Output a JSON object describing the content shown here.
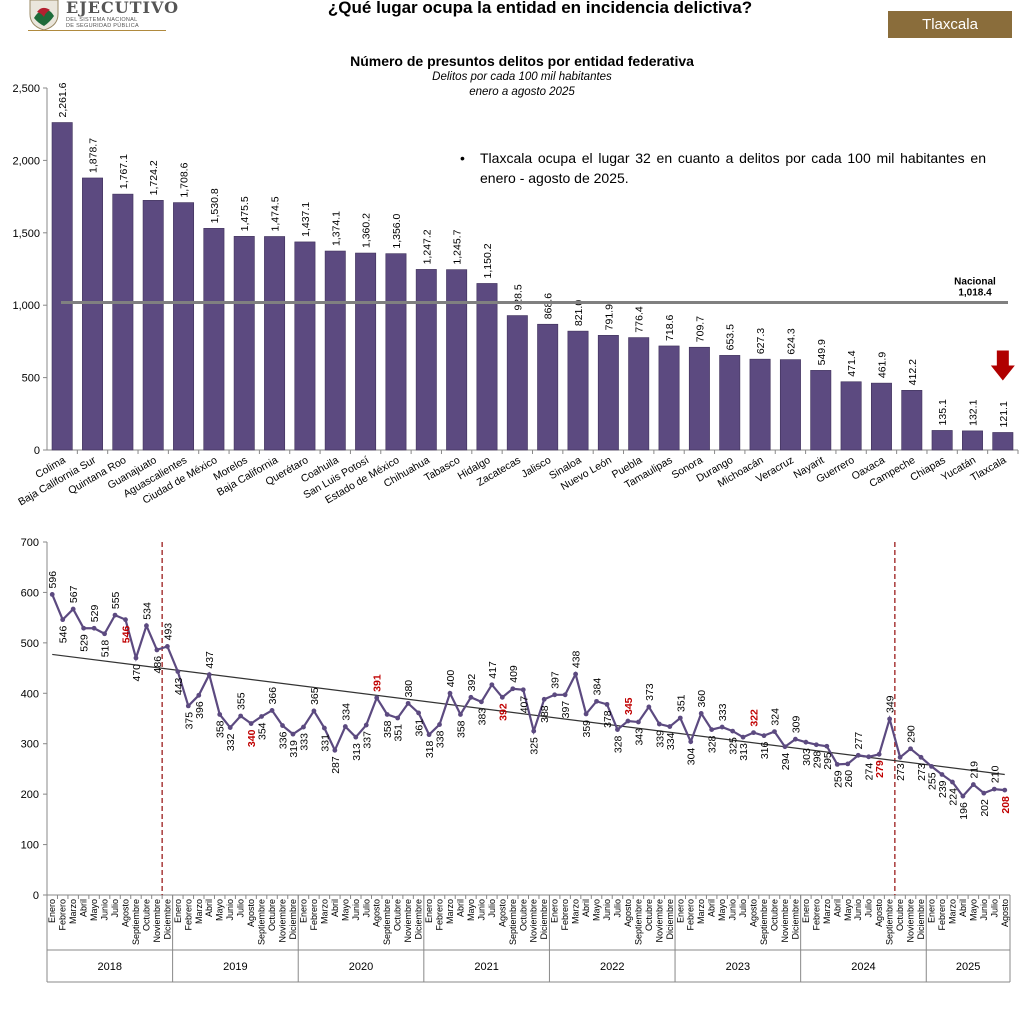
{
  "header": {
    "logo_main": "EJECUTIVO",
    "logo_sub1": "DEL SISTEMA NACIONAL",
    "logo_sub2": "DE SEGURIDAD PÚBLICA",
    "title": "¿Qué lugar ocupa la entidad en incidencia delictiva?",
    "state": "Tlaxcala",
    "accent_color": "#8a6d3b"
  },
  "note": {
    "bullet": "•",
    "text": "Tlaxcala ocupa el lugar 32 en cuanto a delitos por cada 100 mil habitantes en enero - agosto de 2025."
  },
  "chart_data": [
    {
      "type": "bar",
      "title": "Número de presuntos delitos por entidad federativa",
      "subtitle": "Delitos por cada 100 mil habitantes",
      "period": "enero a agosto 2025",
      "categories": [
        "Colima",
        "Baja California Sur",
        "Quintana Roo",
        "Guanajuato",
        "Aguascalientes",
        "Ciudad de México",
        "Morelos",
        "Baja California",
        "Querétaro",
        "Coahuila",
        "San Luis Potosí",
        "Estado de México",
        "Chihuahua",
        "Tabasco",
        "Hidalgo",
        "Zacatecas",
        "Jalisco",
        "Sinaloa",
        "Nuevo León",
        "Puebla",
        "Tamaulipas",
        "Sonora",
        "Durango",
        "Michoacán",
        "Veracruz",
        "Nayarit",
        "Guerrero",
        "Oaxaca",
        "Campeche",
        "Chiapas",
        "Yucatán",
        "Tlaxcala"
      ],
      "values": [
        2261.6,
        1878.7,
        1767.1,
        1724.2,
        1708.6,
        1530.8,
        1475.5,
        1474.5,
        1437.1,
        1374.1,
        1360.2,
        1356.0,
        1247.2,
        1245.7,
        1150.2,
        928.5,
        868.6,
        821.0,
        791.9,
        776.4,
        718.6,
        709.7,
        653.5,
        627.3,
        624.3,
        549.9,
        471.4,
        461.9,
        412.2,
        135.1,
        132.1,
        121.1
      ],
      "value_labels": [
        "2,261.6",
        "1,878.7",
        "1,767.1",
        "1,724.2",
        "1,708.6",
        "1,530.8",
        "1,475.5",
        "1,474.5",
        "1,437.1",
        "1,374.1",
        "1,360.2",
        "1,356.0",
        "1,247.2",
        "1,245.7",
        "1,150.2",
        "928.5",
        "868.6",
        "821.0",
        "791.9",
        "776.4",
        "718.6",
        "709.7",
        "653.5",
        "627.3",
        "624.3",
        "549.9",
        "471.4",
        "461.9",
        "412.2",
        "135.1",
        "132.1",
        "121.1"
      ],
      "yticks": [
        0,
        500,
        1000,
        1500,
        2000,
        2500
      ],
      "ytick_labels": [
        "0",
        "500",
        "1,000",
        "1,500",
        "2,000",
        "2,500"
      ],
      "ylim": [
        0,
        2500
      ],
      "reference": {
        "label": "Nacional",
        "value": 1018.4,
        "value_label": "1,018.4",
        "color": "#808080"
      },
      "highlight": "Tlaxcala",
      "bar_color": "#5c4a80",
      "arrow_color": "#b00000"
    },
    {
      "type": "line",
      "months": [
        "Enero",
        "Febrero",
        "Marzo",
        "Abril",
        "Mayo",
        "Junio",
        "Julio",
        "Agosto",
        "Septiembre",
        "Octubre",
        "Noviembre",
        "Diciembre"
      ],
      "years": [
        "2018",
        "2019",
        "2020",
        "2021",
        "2022",
        "2023",
        "2024",
        "2025"
      ],
      "values": [
        596,
        546,
        567,
        529,
        529,
        518,
        555,
        546,
        470,
        534,
        486,
        493,
        443,
        375,
        396,
        437,
        358,
        332,
        355,
        340,
        354,
        366,
        336,
        319,
        333,
        365,
        331,
        287,
        334,
        313,
        337,
        391,
        358,
        351,
        380,
        361,
        318,
        338,
        400,
        358,
        392,
        383,
        417,
        392,
        409,
        407,
        325,
        388,
        397,
        397,
        438,
        359,
        384,
        378,
        328,
        345,
        343,
        373,
        339,
        334,
        351,
        304,
        360,
        328,
        333,
        325,
        313,
        322,
        316,
        324,
        294,
        309,
        303,
        298,
        295,
        259,
        260,
        277,
        274,
        279,
        349,
        273,
        290,
        273,
        255,
        239,
        224,
        196,
        219,
        202,
        210,
        208
      ],
      "highlighted_values": [
        546,
        340,
        391,
        392,
        345,
        322,
        279,
        208
      ],
      "yticks": [
        0,
        100,
        200,
        300,
        400,
        500,
        600,
        700
      ],
      "ylim": [
        0,
        700
      ],
      "trend": {
        "start": 477,
        "end": 239
      },
      "dividers_after": [
        "Noviembre 2018",
        "Septiembre 2024"
      ],
      "line_color": "#5c4a80",
      "highlight_color": "#c00000",
      "divider_color": "#9b1c1c"
    }
  ]
}
